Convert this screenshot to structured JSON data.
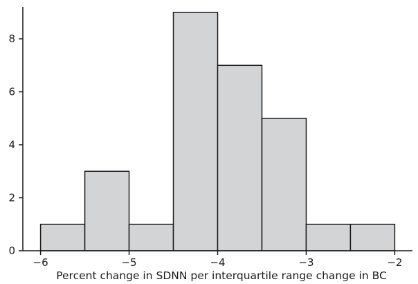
{
  "chart_data": {
    "type": "bar",
    "subtype": "histogram",
    "title": "",
    "xlabel": "Percent change in SDNN per interquartile range change in BC",
    "ylabel": "",
    "bins": [
      {
        "start": -6.0,
        "end": -5.5,
        "count": 1
      },
      {
        "start": -5.5,
        "end": -5.0,
        "count": 3
      },
      {
        "start": -5.0,
        "end": -4.5,
        "count": 1
      },
      {
        "start": -4.5,
        "end": -4.0,
        "count": 9
      },
      {
        "start": -4.0,
        "end": -3.5,
        "count": 7
      },
      {
        "start": -3.5,
        "end": -3.0,
        "count": 5
      },
      {
        "start": -3.0,
        "end": -2.5,
        "count": 1
      },
      {
        "start": -2.5,
        "end": -2.0,
        "count": 1
      }
    ],
    "xlim": [
      -6.2,
      -1.8
    ],
    "ylim": [
      0,
      9.1
    ],
    "xticks": [
      -6,
      -5,
      -4,
      -3,
      -2
    ],
    "xtick_labels": [
      "−6",
      "−5",
      "−4",
      "−3",
      "−2"
    ],
    "yticks": [
      0,
      2,
      4,
      6,
      8
    ],
    "ytick_labels": [
      "0",
      "2",
      "4",
      "6",
      "8"
    ],
    "grid": false,
    "legend": "none",
    "colors": {
      "bar_fill": "#d3d4d6",
      "bar_stroke": "#1a1a1a",
      "axis": "#1a1a1a"
    }
  }
}
